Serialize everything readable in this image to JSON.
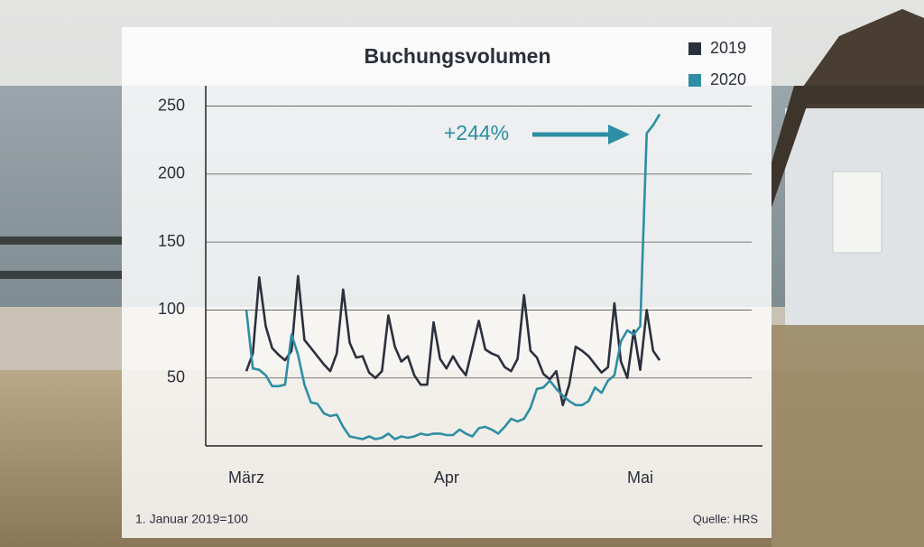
{
  "chart_data": {
    "type": "line",
    "title": "Buchungsvolumen",
    "annotation": "+244%",
    "note": "1. Januar 2019=100",
    "source": "Quelle: HRS",
    "categories": [
      "März",
      null,
      null,
      null,
      null,
      null,
      null,
      null,
      null,
      null,
      null,
      null,
      null,
      null,
      null,
      null,
      null,
      null,
      null,
      null,
      null,
      null,
      null,
      null,
      null,
      null,
      null,
      null,
      null,
      null,
      null,
      "Apr",
      null,
      null,
      null,
      null,
      null,
      null,
      null,
      null,
      null,
      null,
      null,
      null,
      null,
      null,
      null,
      null,
      null,
      null,
      null,
      null,
      null,
      null,
      null,
      null,
      null,
      null,
      null,
      null,
      null,
      "Mai",
      null,
      null,
      null
    ],
    "series": [
      {
        "name": "2019",
        "color": "#2b303d",
        "values": [
          55,
          68,
          124,
          88,
          72,
          67,
          63,
          70,
          125,
          78,
          72,
          66,
          60,
          55,
          68,
          115,
          76,
          65,
          66,
          54,
          50,
          55,
          96,
          73,
          62,
          66,
          52,
          45,
          45,
          91,
          64,
          57,
          66,
          58,
          52,
          72,
          92,
          71,
          68,
          66,
          58,
          55,
          64,
          111,
          70,
          65,
          53,
          49,
          55,
          30,
          45,
          73,
          70,
          66,
          60,
          54,
          58,
          105,
          62,
          50,
          85,
          56,
          100,
          70,
          63
        ]
      },
      {
        "name": "2020",
        "color": "#2e8ea3",
        "values": [
          100,
          57,
          56,
          52,
          44,
          44,
          45,
          82,
          67,
          45,
          32,
          31,
          24,
          22,
          23,
          14,
          7,
          6,
          5,
          7,
          5,
          6,
          9,
          5,
          7,
          6,
          7,
          9,
          8,
          9,
          9,
          8,
          8,
          12,
          9,
          7,
          13,
          14,
          12,
          9,
          14,
          20,
          18,
          20,
          28,
          42,
          43,
          48,
          42,
          37,
          33,
          30,
          30,
          33,
          43,
          39,
          48,
          52,
          77,
          85,
          82,
          88,
          230,
          236,
          244
        ]
      }
    ],
    "ylim": [
      0,
      265
    ],
    "yticks": [
      50,
      100,
      150,
      200,
      250
    ],
    "grid": true
  }
}
